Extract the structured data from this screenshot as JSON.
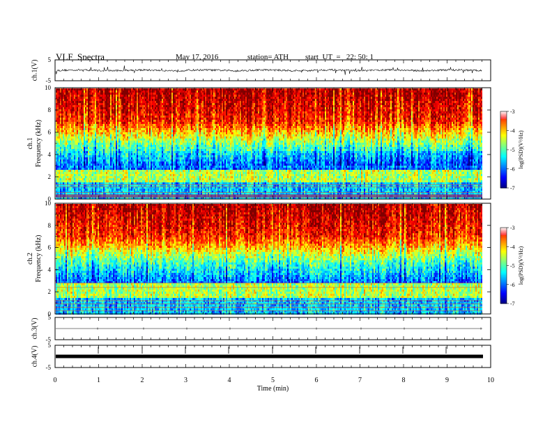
{
  "header": {
    "title": "VLF  Spectra",
    "date": "May 17, 2016",
    "station": "station= ATH",
    "start_ut": "start  UT  =   22: 50: 1"
  },
  "chart_data": [
    {
      "type": "line",
      "id": "ch1-waveform",
      "ylabel": "ch.1(V)",
      "ylim": [
        -5,
        5
      ],
      "y_ticks": [
        "5",
        "-5"
      ],
      "xlim": [
        0,
        10
      ],
      "trace_end_min": 9.8
    },
    {
      "type": "heatmap",
      "id": "ch1-spectrogram",
      "ylabel": "ch.1\nFrequency  (kHz)",
      "ylabel_lines": [
        "ch.1",
        "Frequency  (kHz)"
      ],
      "ylim": [
        0,
        10
      ],
      "y_ticks": [
        "0",
        "2",
        "4",
        "6",
        "8",
        "10"
      ],
      "xlim": [
        0,
        10
      ],
      "colorbar": {
        "label": "log(PSD)(V²/Hz)",
        "range": [
          -7,
          -3
        ],
        "ticks": [
          "-3",
          "-4",
          "-5",
          "-6",
          "-7"
        ]
      }
    },
    {
      "type": "heatmap",
      "id": "ch2-spectrogram",
      "ylabel_lines": [
        "ch.2",
        "Frequency  (kHz)"
      ],
      "ylim": [
        0,
        10
      ],
      "y_ticks": [
        "0",
        "2",
        "4",
        "6",
        "8",
        "10"
      ],
      "xlim": [
        0,
        10
      ],
      "colorbar": {
        "label": "log(PSD)(V²/Hz)",
        "range": [
          -7,
          -3
        ],
        "ticks": [
          "-3",
          "-4",
          "-5",
          "-6",
          "-7"
        ]
      }
    },
    {
      "type": "line",
      "id": "ch3-waveform",
      "ylabel": "ch.3(V)",
      "ylim": [
        -5,
        5
      ],
      "y_ticks": [
        "5",
        "-5"
      ],
      "xlim": [
        0,
        10
      ]
    },
    {
      "type": "line",
      "id": "ch4-waveform",
      "ylabel": "ch.4(V)",
      "ylim": [
        -5,
        5
      ],
      "y_ticks": [
        "5",
        "-5"
      ],
      "xlim": [
        0,
        10
      ],
      "xlabel": "Time  (min)",
      "x_ticks": [
        "0",
        "1",
        "2",
        "3",
        "4",
        "5",
        "6",
        "7",
        "8",
        "9",
        "10"
      ]
    }
  ]
}
